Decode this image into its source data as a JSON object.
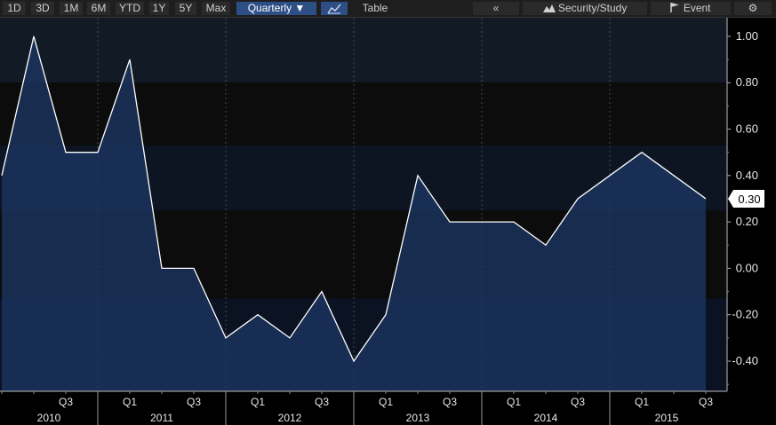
{
  "toolbar": {
    "ranges": [
      "1D",
      "3D",
      "1M",
      "6M",
      "YTD",
      "1Y",
      "5Y",
      "Max"
    ],
    "period": "Quarterly ▼",
    "chart_icon": "line-chart-icon",
    "table_label": "Table",
    "collapse": "«",
    "security_label": "Security/Study",
    "security_icon": "mountain-chart-icon",
    "event_label": "Event",
    "event_icon": "flag-icon",
    "settings_icon": "gear-icon"
  },
  "chart_data": {
    "type": "area",
    "x": [
      "2010-Q1",
      "2010-Q2",
      "2010-Q3",
      "2010-Q4",
      "2011-Q1",
      "2011-Q2",
      "2011-Q3",
      "2011-Q4",
      "2012-Q1",
      "2012-Q2",
      "2012-Q3",
      "2012-Q4",
      "2013-Q1",
      "2013-Q2",
      "2013-Q3",
      "2013-Q4",
      "2014-Q1",
      "2014-Q2",
      "2014-Q3",
      "2014-Q4",
      "2015-Q1",
      "2015-Q2",
      "2015-Q3"
    ],
    "values": [
      0.4,
      1.0,
      0.5,
      0.5,
      0.9,
      0.0,
      0.0,
      -0.3,
      -0.2,
      -0.3,
      -0.1,
      -0.4,
      -0.2,
      0.4,
      0.2,
      0.2,
      0.2,
      0.1,
      0.3,
      0.4,
      0.5,
      0.4,
      0.3
    ],
    "last_value_label": "0.30",
    "yticks": [
      "1.00",
      "0.80",
      "0.60",
      "0.40",
      "0.20",
      "0.00",
      "-0.20",
      "-0.40"
    ],
    "ylim": [
      -0.53,
      1.08
    ],
    "quarter_ticks": [
      "Q3",
      "Q1",
      "Q3",
      "Q1",
      "Q3",
      "Q1",
      "Q3",
      "Q1",
      "Q3",
      "Q1",
      "Q3"
    ],
    "years": [
      "2010",
      "2011",
      "2012",
      "2013",
      "2014",
      "2015"
    ],
    "grid": true,
    "colors": {
      "line": "#ffffff",
      "fill": "#1c3766",
      "background": "#000000",
      "label_bg": "#ffffff",
      "label_text": "#000000"
    }
  }
}
